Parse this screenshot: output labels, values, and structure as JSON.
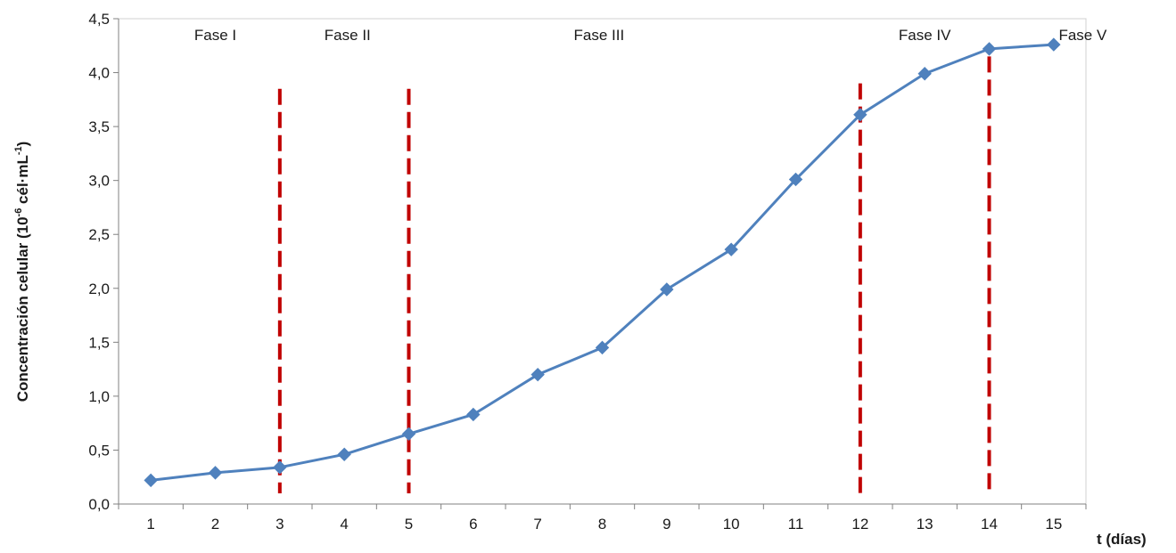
{
  "chart_data": {
    "type": "line",
    "xlabel": "t (días)",
    "ylabel_parts": {
      "main": "Concentración  celular (10",
      "exp1": "-6",
      "mid": " cél·mL",
      "exp2": "-1",
      "end": ")"
    },
    "x": [
      1,
      2,
      3,
      4,
      5,
      6,
      7,
      8,
      9,
      10,
      11,
      12,
      13,
      14,
      15
    ],
    "x_tick_labels": [
      "1",
      "2",
      "3",
      "4",
      "5",
      "6",
      "7",
      "8",
      "9",
      "10",
      "11",
      "12",
      "13",
      "14",
      "15"
    ],
    "y_tick_labels": [
      "0,0",
      "0,5",
      "1,0",
      "1,5",
      "2,0",
      "2,5",
      "3,0",
      "3,5",
      "4,0",
      "4,5"
    ],
    "ylim": [
      0,
      4.5
    ],
    "series": [
      {
        "values": [
          0.22,
          0.29,
          0.34,
          0.46,
          0.65,
          0.83,
          1.2,
          1.45,
          1.99,
          2.36,
          3.01,
          3.61,
          3.99,
          4.22,
          4.26
        ],
        "color": "#4f81bd",
        "marker": "diamond"
      }
    ],
    "phase_boundaries": [
      {
        "x": 3,
        "y_top": 3.85
      },
      {
        "x": 5,
        "y_top": 3.85
      },
      {
        "x": 12,
        "y_top": 3.9
      },
      {
        "x": 14,
        "y_top": 4.15
      }
    ],
    "boundary_color": "#c00000",
    "phase_labels": [
      {
        "text": "Fase I",
        "x": 2.0,
        "y": 4.3
      },
      {
        "text": "Fase II",
        "x": 4.05,
        "y": 4.3
      },
      {
        "text": "Fase III",
        "x": 7.95,
        "y": 4.3
      },
      {
        "text": "Fase IV",
        "x": 13.0,
        "y": 4.3
      },
      {
        "text": "Fase V",
        "x": 15.45,
        "y": 4.3
      }
    ],
    "grid": false
  }
}
